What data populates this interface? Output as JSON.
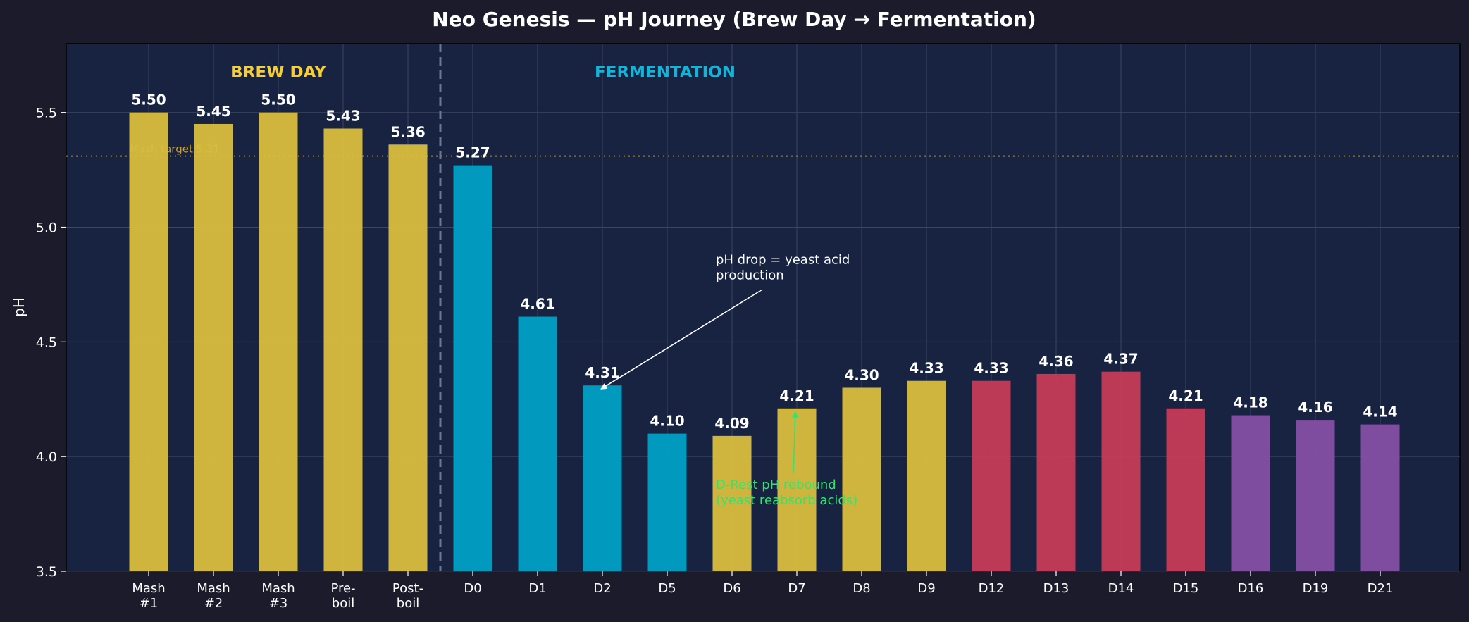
{
  "chart_data": {
    "type": "bar",
    "title": "Neo Genesis — pH Journey (Brew Day → Fermentation)",
    "ylabel": "pH",
    "xlabel": "",
    "ylim": [
      3.5,
      5.8
    ],
    "yticks": [
      "3.5",
      "4.0",
      "4.5",
      "5.0",
      "5.5"
    ],
    "grid": true,
    "categories": [
      "Mash\n#1",
      "Mash\n#2",
      "Mash\n#3",
      "Pre-\nboil",
      "Post-\nboil",
      "D0",
      "D1",
      "D2",
      "D5",
      "D6",
      "D7",
      "D8",
      "D9",
      "D12",
      "D13",
      "D14",
      "D15",
      "D16",
      "D19",
      "D21"
    ],
    "values": [
      5.5,
      5.45,
      5.5,
      5.43,
      5.36,
      5.27,
      4.61,
      4.31,
      4.1,
      4.09,
      4.21,
      4.3,
      4.33,
      4.33,
      4.36,
      4.37,
      4.21,
      4.18,
      4.16,
      4.14
    ],
    "value_labels": [
      "5.50",
      "5.45",
      "5.50",
      "5.43",
      "5.36",
      "5.27",
      "4.61",
      "4.31",
      "4.10",
      "4.09",
      "4.21",
      "4.30",
      "4.33",
      "4.33",
      "4.36",
      "4.37",
      "4.21",
      "4.18",
      "4.16",
      "4.14"
    ],
    "bar_colors": [
      "#d9be3e",
      "#d9be3e",
      "#d9be3e",
      "#d9be3e",
      "#d9be3e",
      "#00a0c4",
      "#00a0c4",
      "#00a0c4",
      "#00a0c4",
      "#d9be3e",
      "#d9be3e",
      "#d9be3e",
      "#d9be3e",
      "#c63c58",
      "#c63c58",
      "#c63c58",
      "#c63c58",
      "#8450a4",
      "#8450a4",
      "#8450a4"
    ],
    "reference_line": {
      "y": 5.31,
      "label": "Mash target 5.31",
      "color": "#c9a33a"
    },
    "phase_divider_after_index": 4,
    "phases": [
      {
        "label": "BREW DAY",
        "color": "#f5cd38"
      },
      {
        "label": "FERMENTATION",
        "color": "#12b4d8"
      }
    ],
    "annotations": [
      {
        "text": [
          "pH drop = yeast acid",
          "production"
        ],
        "color": "#ffffff",
        "target_index": 7,
        "target_value": 4.31,
        "text_at_index": 8.75,
        "text_at_value": 4.84
      },
      {
        "text": [
          "D-Rest pH rebound",
          "(yeast reabsorb acids)"
        ],
        "color": "#2ee56e",
        "target_index": 10,
        "target_value": 4.21,
        "text_at_index": 8.75,
        "text_at_value": 3.86
      }
    ]
  },
  "colors": {
    "background": "#1b1b2b",
    "plot_background": "#172341",
    "grid": "#3b4660",
    "divider": "#6a7896"
  }
}
